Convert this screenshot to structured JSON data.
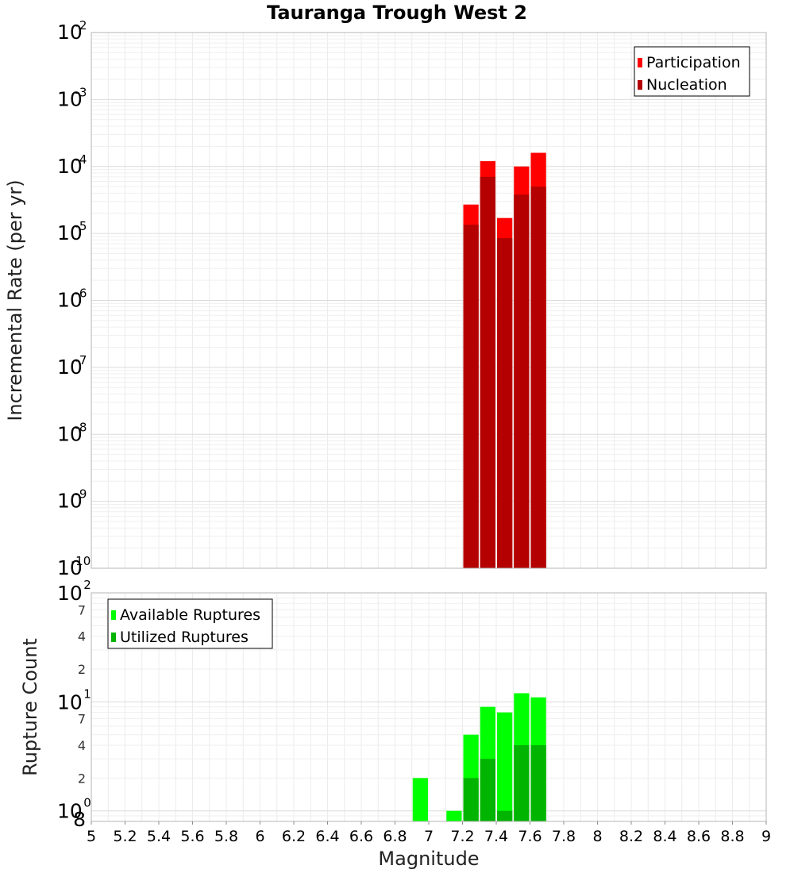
{
  "chart_data": [
    {
      "type": "bar",
      "title": "Tauranga Trough West 2",
      "ylabel": "Incremental Rate (per yr)",
      "xlabel": "",
      "y_scale": "log",
      "ylim": [
        1e-10,
        0.01
      ],
      "xlim": [
        5,
        9
      ],
      "y_ticks": [
        {
          "base": "10",
          "exp": "-10"
        },
        {
          "base": "10",
          "exp": "-9"
        },
        {
          "base": "10",
          "exp": "-8"
        },
        {
          "base": "10",
          "exp": "-7"
        },
        {
          "base": "10",
          "exp": "-6"
        },
        {
          "base": "10",
          "exp": "-5"
        },
        {
          "base": "10",
          "exp": "-4"
        },
        {
          "base": "10",
          "exp": "-3"
        },
        {
          "base": "10",
          "exp": "-2"
        }
      ],
      "legend_position": "top-right",
      "grid": true,
      "bar_width": 0.1,
      "x": [
        7.25,
        7.35,
        7.45,
        7.55,
        7.65
      ],
      "series": [
        {
          "name": "Participation",
          "color": "#ff0000",
          "values": [
            2.7e-05,
            0.00012,
            1.7e-05,
            0.0001,
            0.00016
          ]
        },
        {
          "name": "Nucleation",
          "color": "#b40000",
          "values": [
            1.35e-05,
            7e-05,
            8.5e-06,
            3.8e-05,
            5e-05
          ]
        }
      ]
    },
    {
      "type": "bar",
      "title": "",
      "ylabel": "Rupture Count",
      "xlabel": "Magnitude",
      "y_scale": "log",
      "ylim": [
        0.8,
        100
      ],
      "xlim": [
        5,
        9
      ],
      "x_ticks": [
        "5",
        "5.2",
        "5.4",
        "5.6",
        "5.8",
        "6",
        "6.2",
        "6.4",
        "6.6",
        "6.8",
        "7",
        "7.2",
        "7.4",
        "7.6",
        "7.8",
        "8",
        "8.2",
        "8.4",
        "8.6",
        "8.8",
        "9"
      ],
      "y_major_ticks": [
        {
          "base": "10",
          "exp": "0"
        },
        {
          "base": "10",
          "exp": "1"
        },
        {
          "base": "10",
          "exp": "2"
        }
      ],
      "y_minor_ticks": [
        "8",
        "2",
        "4",
        "7",
        "2",
        "4",
        "7"
      ],
      "legend_position": "top-left",
      "grid": true,
      "bar_width": 0.1,
      "x": [
        6.95,
        7.15,
        7.25,
        7.35,
        7.45,
        7.55,
        7.65
      ],
      "series": [
        {
          "name": "Available Ruptures",
          "color": "#00ff00",
          "values": [
            2,
            1,
            5,
            9,
            8,
            12,
            11
          ]
        },
        {
          "name": "Utilized Ruptures",
          "color": "#00b400",
          "values": [
            0,
            0,
            2,
            3,
            1,
            4,
            4
          ]
        }
      ]
    }
  ]
}
